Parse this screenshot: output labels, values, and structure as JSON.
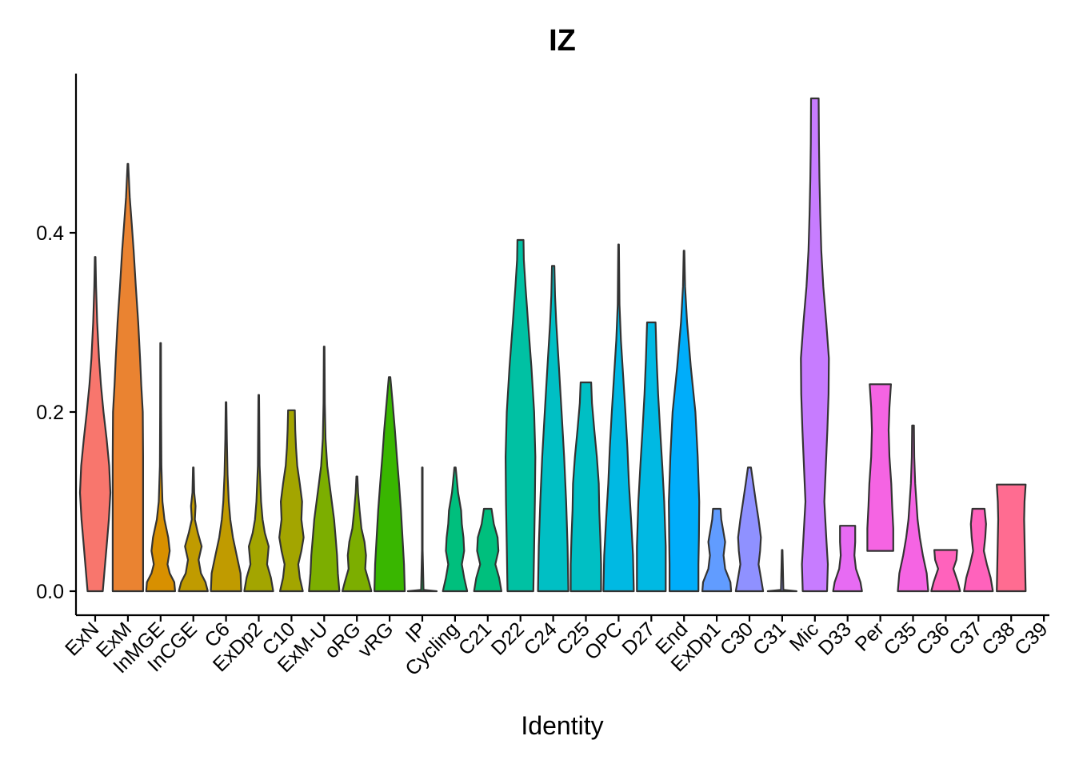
{
  "chart_data": {
    "type": "violin",
    "title": "IZ",
    "xlabel": "Identity",
    "ylabel": "",
    "ylim": [
      -0.028,
      0.58
    ],
    "yticks": [
      0.0,
      0.2,
      0.4
    ],
    "ytick_labels": [
      "0.0",
      "0.2",
      "0.4"
    ],
    "categories": [
      "ExN",
      "ExM",
      "InMGE",
      "InCGE",
      "C6",
      "ExDp2",
      "C10",
      "ExM-U",
      "oRG",
      "vRG",
      "IP",
      "Cycling",
      "C21",
      "D22",
      "C24",
      "C25",
      "OPC",
      "D27",
      "End",
      "ExDp1",
      "C30",
      "C31",
      "Mic",
      "D33",
      "Per",
      "C35",
      "C36",
      "C37",
      "C38",
      "C39"
    ],
    "series": [
      {
        "name": "ExN",
        "color": "#F8766D",
        "max": 0.373,
        "density": [
          [
            0,
            0.5
          ],
          [
            0.02,
            0.6
          ],
          [
            0.05,
            0.75
          ],
          [
            0.08,
            0.9
          ],
          [
            0.11,
            1.0
          ],
          [
            0.14,
            0.92
          ],
          [
            0.17,
            0.75
          ],
          [
            0.2,
            0.55
          ],
          [
            0.23,
            0.38
          ],
          [
            0.26,
            0.25
          ],
          [
            0.3,
            0.13
          ],
          [
            0.34,
            0.06
          ],
          [
            0.373,
            0.02
          ]
        ]
      },
      {
        "name": "ExM",
        "color": "#EA8331",
        "max": 0.477,
        "density": [
          [
            0,
            1.0
          ],
          [
            0.05,
            1.0
          ],
          [
            0.1,
            1.0
          ],
          [
            0.15,
            1.0
          ],
          [
            0.2,
            0.98
          ],
          [
            0.23,
            0.88
          ],
          [
            0.26,
            0.8
          ],
          [
            0.3,
            0.68
          ],
          [
            0.34,
            0.52
          ],
          [
            0.38,
            0.38
          ],
          [
            0.41,
            0.25
          ],
          [
            0.44,
            0.12
          ],
          [
            0.477,
            0.02
          ]
        ]
      },
      {
        "name": "InMGE",
        "color": "#D89000",
        "max": 0.277,
        "density": [
          [
            0,
            0.95
          ],
          [
            0.01,
            0.9
          ],
          [
            0.02,
            0.6
          ],
          [
            0.03,
            0.45
          ],
          [
            0.045,
            0.6
          ],
          [
            0.06,
            0.5
          ],
          [
            0.08,
            0.25
          ],
          [
            0.1,
            0.12
          ],
          [
            0.14,
            0.05
          ],
          [
            0.2,
            0.03
          ],
          [
            0.277,
            0.02
          ]
        ]
      },
      {
        "name": "InCGE",
        "color": "#C09B00",
        "max": 0.138,
        "density": [
          [
            0,
            0.95
          ],
          [
            0.01,
            0.8
          ],
          [
            0.02,
            0.5
          ],
          [
            0.035,
            0.35
          ],
          [
            0.05,
            0.55
          ],
          [
            0.065,
            0.3
          ],
          [
            0.08,
            0.1
          ],
          [
            0.095,
            0.15
          ],
          [
            0.11,
            0.06
          ],
          [
            0.138,
            0.02
          ]
        ]
      },
      {
        "name": "C6",
        "color": "#C09B00",
        "max": 0.211,
        "density": [
          [
            0,
            1.0
          ],
          [
            0.02,
            0.95
          ],
          [
            0.04,
            0.7
          ],
          [
            0.06,
            0.45
          ],
          [
            0.08,
            0.28
          ],
          [
            0.1,
            0.18
          ],
          [
            0.13,
            0.1
          ],
          [
            0.17,
            0.05
          ],
          [
            0.211,
            0.02
          ]
        ]
      },
      {
        "name": "ExDp2",
        "color": "#A3A500",
        "max": 0.219,
        "density": [
          [
            0,
            0.95
          ],
          [
            0.015,
            0.8
          ],
          [
            0.03,
            0.55
          ],
          [
            0.05,
            0.65
          ],
          [
            0.065,
            0.4
          ],
          [
            0.08,
            0.25
          ],
          [
            0.1,
            0.15
          ],
          [
            0.14,
            0.06
          ],
          [
            0.219,
            0.02
          ]
        ]
      },
      {
        "name": "C10",
        "color": "#A3A500",
        "max": 0.202,
        "density": [
          [
            0,
            0.75
          ],
          [
            0.015,
            0.55
          ],
          [
            0.03,
            0.45
          ],
          [
            0.045,
            0.65
          ],
          [
            0.06,
            0.8
          ],
          [
            0.08,
            0.65
          ],
          [
            0.1,
            0.7
          ],
          [
            0.12,
            0.55
          ],
          [
            0.14,
            0.38
          ],
          [
            0.16,
            0.3
          ],
          [
            0.18,
            0.25
          ],
          [
            0.202,
            0.22
          ]
        ]
      },
      {
        "name": "ExM-U",
        "color": "#7CAE00",
        "max": 0.273,
        "density": [
          [
            0,
            1.0
          ],
          [
            0.02,
            0.9
          ],
          [
            0.04,
            0.85
          ],
          [
            0.06,
            0.75
          ],
          [
            0.08,
            0.65
          ],
          [
            0.1,
            0.5
          ],
          [
            0.12,
            0.35
          ],
          [
            0.14,
            0.2
          ],
          [
            0.17,
            0.09
          ],
          [
            0.21,
            0.04
          ],
          [
            0.273,
            0.02
          ]
        ]
      },
      {
        "name": "oRG",
        "color": "#7CAE00",
        "max": 0.128,
        "density": [
          [
            0,
            0.95
          ],
          [
            0.01,
            0.8
          ],
          [
            0.025,
            0.55
          ],
          [
            0.04,
            0.6
          ],
          [
            0.055,
            0.5
          ],
          [
            0.07,
            0.3
          ],
          [
            0.09,
            0.18
          ],
          [
            0.11,
            0.08
          ],
          [
            0.128,
            0.03
          ]
        ]
      },
      {
        "name": "vRG",
        "color": "#39B600",
        "max": 0.239,
        "density": [
          [
            0,
            1.0
          ],
          [
            0.03,
            0.95
          ],
          [
            0.06,
            0.85
          ],
          [
            0.09,
            0.75
          ],
          [
            0.12,
            0.62
          ],
          [
            0.15,
            0.48
          ],
          [
            0.18,
            0.35
          ],
          [
            0.21,
            0.2
          ],
          [
            0.239,
            0.05
          ]
        ]
      },
      {
        "name": "IP",
        "color": "#00BB4E",
        "max": 0.138,
        "density": [
          [
            0,
            0.95
          ],
          [
            0.0015,
            0.08
          ],
          [
            0.046,
            0.02
          ],
          [
            0.092,
            0.02
          ],
          [
            0.138,
            0.02
          ]
        ]
      },
      {
        "name": "Cycling",
        "color": "#00BF7D",
        "max": 0.138,
        "density": [
          [
            0,
            0.8
          ],
          [
            0.015,
            0.6
          ],
          [
            0.03,
            0.45
          ],
          [
            0.045,
            0.6
          ],
          [
            0.06,
            0.55
          ],
          [
            0.075,
            0.45
          ],
          [
            0.09,
            0.4
          ],
          [
            0.11,
            0.2
          ],
          [
            0.138,
            0.04
          ]
        ]
      },
      {
        "name": "C21",
        "color": "#00BF7D",
        "max": 0.092,
        "density": [
          [
            0,
            0.9
          ],
          [
            0.015,
            0.75
          ],
          [
            0.03,
            0.5
          ],
          [
            0.045,
            0.7
          ],
          [
            0.06,
            0.65
          ],
          [
            0.075,
            0.4
          ],
          [
            0.092,
            0.25
          ]
        ]
      },
      {
        "name": "D22",
        "color": "#00C1A3",
        "max": 0.392,
        "density": [
          [
            0,
            0.85
          ],
          [
            0.05,
            0.9
          ],
          [
            0.1,
            0.95
          ],
          [
            0.15,
            0.98
          ],
          [
            0.2,
            0.9
          ],
          [
            0.25,
            0.72
          ],
          [
            0.3,
            0.5
          ],
          [
            0.34,
            0.33
          ],
          [
            0.37,
            0.22
          ],
          [
            0.392,
            0.2
          ]
        ]
      },
      {
        "name": "C24",
        "color": "#00BFC4",
        "max": 0.363,
        "density": [
          [
            0,
            1.0
          ],
          [
            0.05,
            0.95
          ],
          [
            0.1,
            0.85
          ],
          [
            0.15,
            0.72
          ],
          [
            0.2,
            0.55
          ],
          [
            0.25,
            0.38
          ],
          [
            0.3,
            0.2
          ],
          [
            0.33,
            0.12
          ],
          [
            0.363,
            0.08
          ]
        ]
      },
      {
        "name": "C25",
        "color": "#00BFC4",
        "max": 0.233,
        "density": [
          [
            0,
            1.0
          ],
          [
            0.03,
            1.0
          ],
          [
            0.06,
            0.95
          ],
          [
            0.09,
            0.88
          ],
          [
            0.12,
            0.85
          ],
          [
            0.15,
            0.72
          ],
          [
            0.18,
            0.55
          ],
          [
            0.21,
            0.4
          ],
          [
            0.233,
            0.35
          ]
        ]
      },
      {
        "name": "OPC",
        "color": "#00B9E3",
        "max": 0.387,
        "density": [
          [
            0,
            1.0
          ],
          [
            0.04,
            0.95
          ],
          [
            0.08,
            0.82
          ],
          [
            0.12,
            0.68
          ],
          [
            0.16,
            0.58
          ],
          [
            0.2,
            0.45
          ],
          [
            0.24,
            0.3
          ],
          [
            0.28,
            0.15
          ],
          [
            0.32,
            0.06
          ],
          [
            0.387,
            0.02
          ]
        ]
      },
      {
        "name": "D27",
        "color": "#00B9E3",
        "max": 0.3,
        "density": [
          [
            0,
            0.95
          ],
          [
            0.05,
            0.95
          ],
          [
            0.1,
            0.85
          ],
          [
            0.14,
            0.72
          ],
          [
            0.18,
            0.58
          ],
          [
            0.22,
            0.45
          ],
          [
            0.26,
            0.35
          ],
          [
            0.3,
            0.28
          ]
        ]
      },
      {
        "name": "End",
        "color": "#00ADFA",
        "max": 0.38,
        "density": [
          [
            0,
            0.95
          ],
          [
            0.03,
            0.95
          ],
          [
            0.06,
            0.98
          ],
          [
            0.1,
            1.0
          ],
          [
            0.15,
            0.9
          ],
          [
            0.2,
            0.75
          ],
          [
            0.25,
            0.45
          ],
          [
            0.3,
            0.2
          ],
          [
            0.34,
            0.07
          ],
          [
            0.38,
            0.02
          ]
        ]
      },
      {
        "name": "ExDp1",
        "color": "#619CFF",
        "max": 0.092,
        "density": [
          [
            0,
            0.95
          ],
          [
            0.01,
            0.9
          ],
          [
            0.025,
            0.55
          ],
          [
            0.04,
            0.45
          ],
          [
            0.055,
            0.55
          ],
          [
            0.07,
            0.4
          ],
          [
            0.08,
            0.3
          ],
          [
            0.092,
            0.25
          ]
        ]
      },
      {
        "name": "C30",
        "color": "#8F91FF",
        "max": 0.138,
        "density": [
          [
            0,
            0.9
          ],
          [
            0.015,
            0.75
          ],
          [
            0.03,
            0.6
          ],
          [
            0.045,
            0.7
          ],
          [
            0.06,
            0.75
          ],
          [
            0.08,
            0.6
          ],
          [
            0.1,
            0.42
          ],
          [
            0.12,
            0.25
          ],
          [
            0.138,
            0.1
          ]
        ]
      },
      {
        "name": "C31",
        "color": "#8F91FF",
        "max": 0.046,
        "density": [
          [
            0,
            0.95
          ],
          [
            0.0015,
            0.08
          ],
          [
            0.046,
            0.02
          ]
        ]
      },
      {
        "name": "Mic",
        "color": "#C77CFF",
        "max": 0.55,
        "density": [
          [
            0,
            0.8
          ],
          [
            0.03,
            0.85
          ],
          [
            0.06,
            0.75
          ],
          [
            0.1,
            0.62
          ],
          [
            0.14,
            0.72
          ],
          [
            0.18,
            0.82
          ],
          [
            0.22,
            0.9
          ],
          [
            0.26,
            0.92
          ],
          [
            0.3,
            0.75
          ],
          [
            0.34,
            0.55
          ],
          [
            0.38,
            0.42
          ],
          [
            0.42,
            0.35
          ],
          [
            0.46,
            0.3
          ],
          [
            0.5,
            0.27
          ],
          [
            0.55,
            0.25
          ]
        ]
      },
      {
        "name": "D33",
        "color": "#E76BF3",
        "max": 0.073,
        "density": [
          [
            0,
            0.95
          ],
          [
            0.01,
            0.85
          ],
          [
            0.025,
            0.55
          ],
          [
            0.04,
            0.45
          ],
          [
            0.055,
            0.5
          ],
          [
            0.073,
            0.5
          ]
        ]
      },
      {
        "name": "Per",
        "color": "#F564E3",
        "max": 0.231,
        "density": [
          [
            0.045,
            0.85
          ],
          [
            0.07,
            0.85
          ],
          [
            0.095,
            0.78
          ],
          [
            0.12,
            0.72
          ],
          [
            0.15,
            0.6
          ],
          [
            0.18,
            0.55
          ],
          [
            0.205,
            0.6
          ],
          [
            0.231,
            0.7
          ]
        ]
      },
      {
        "name": "C35",
        "color": "#F564E3",
        "max": 0.185,
        "density": [
          [
            0,
            1.0
          ],
          [
            0.02,
            0.9
          ],
          [
            0.04,
            0.65
          ],
          [
            0.06,
            0.45
          ],
          [
            0.08,
            0.3
          ],
          [
            0.1,
            0.22
          ],
          [
            0.12,
            0.14
          ],
          [
            0.15,
            0.08
          ],
          [
            0.185,
            0.06
          ]
        ]
      },
      {
        "name": "C36",
        "color": "#FF62BC",
        "max": 0.046,
        "density": [
          [
            0,
            0.95
          ],
          [
            0.01,
            0.8
          ],
          [
            0.025,
            0.5
          ],
          [
            0.035,
            0.7
          ],
          [
            0.046,
            0.75
          ]
        ]
      },
      {
        "name": "C37",
        "color": "#FF62BC",
        "max": 0.092,
        "density": [
          [
            0,
            0.95
          ],
          [
            0.015,
            0.8
          ],
          [
            0.03,
            0.55
          ],
          [
            0.045,
            0.35
          ],
          [
            0.06,
            0.45
          ],
          [
            0.075,
            0.5
          ],
          [
            0.092,
            0.4
          ]
        ]
      },
      {
        "name": "C38",
        "color": "#FF6C91",
        "max": 0.119,
        "density": [
          [
            0,
            0.95
          ],
          [
            0.04,
            0.9
          ],
          [
            0.08,
            0.85
          ],
          [
            0.1,
            0.88
          ],
          [
            0.119,
            0.95
          ]
        ]
      },
      {
        "name": "C39",
        "color": "#FF6C91",
        "max": null,
        "density": []
      }
    ]
  }
}
